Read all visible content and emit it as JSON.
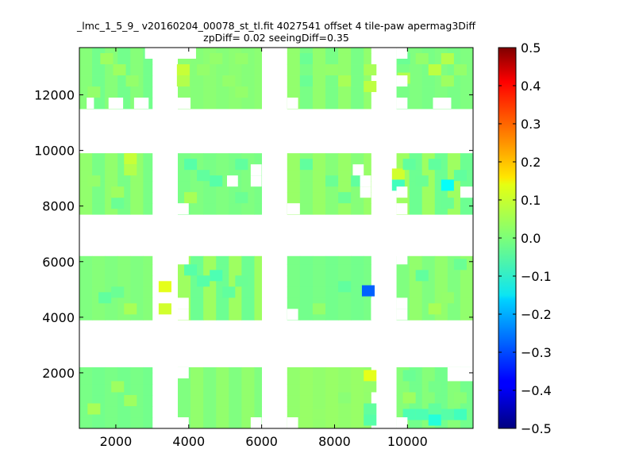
{
  "chart_data": {
    "type": "heatmap",
    "title": "_lmc_1_5_9_ v20160204_00078_st_tl.fit 4027541 offset 4 tile-paw apermag3Diff",
    "subtitle": "zpDiff= 0.02 seeingDiff=0.35",
    "xlabel": "",
    "ylabel": "",
    "xlim": [
      1000,
      11800
    ],
    "ylim": [
      0,
      13700
    ],
    "x_ticks": [
      2000,
      4000,
      6000,
      8000,
      10000
    ],
    "y_ticks": [
      2000,
      4000,
      6000,
      8000,
      10000,
      12000
    ],
    "colorbar": {
      "colormap": "jet",
      "vmin": -0.5,
      "vmax": 0.5,
      "ticks": [
        0.5,
        0.4,
        0.3,
        0.2,
        0.1,
        0.0,
        -0.1,
        -0.2,
        -0.3,
        -0.4,
        -0.5
      ],
      "tick_labels": [
        "0.5",
        "0.4",
        "0.3",
        "0.2",
        "0.1",
        "0.0",
        "−0.1",
        "−0.2",
        "−0.3",
        "−0.4",
        "−0.5"
      ]
    },
    "grid": false,
    "cell_size": [
      350,
      400
    ],
    "detector_columns": [
      [
        1000,
        3000
      ],
      [
        3700,
        6000
      ],
      [
        6700,
        9000
      ],
      [
        9700,
        11800
      ]
    ],
    "detector_rows": [
      [
        0,
        2200
      ],
      [
        3900,
        6200
      ],
      [
        7700,
        9900
      ],
      [
        11500,
        13700
      ]
    ],
    "baseline_value": 0.0,
    "cells": [
      {
        "x": 2050,
        "y": 1500,
        "v": 0.03
      },
      {
        "x": 1400,
        "y": 700,
        "v": 0.04
      },
      {
        "x": 2400,
        "y": 1000,
        "v": 0.03
      },
      {
        "x": 8975,
        "y": 1900,
        "v": 0.1
      },
      {
        "x": 8975,
        "y": 1500,
        "v": 0.02
      },
      {
        "x": 8975,
        "y": 700,
        "v": -0.03
      },
      {
        "x": 8975,
        "y": 300,
        "v": -0.04
      },
      {
        "x": 8275,
        "y": 1100,
        "v": 0.01
      },
      {
        "x": 7575,
        "y": 500,
        "v": 0.02
      },
      {
        "x": 10050,
        "y": 1900,
        "v": -0.02
      },
      {
        "x": 10050,
        "y": 1100,
        "v": 0.03
      },
      {
        "x": 10050,
        "y": 500,
        "v": -0.05
      },
      {
        "x": 10400,
        "y": 500,
        "v": -0.05
      },
      {
        "x": 10750,
        "y": 300,
        "v": -0.09
      },
      {
        "x": 10750,
        "y": 700,
        "v": -0.03
      },
      {
        "x": 11100,
        "y": 500,
        "v": -0.04
      },
      {
        "x": 11450,
        "y": 500,
        "v": -0.06
      },
      {
        "x": 11450,
        "y": 1100,
        "v": 0.01
      },
      {
        "x": 10750,
        "y": 1500,
        "v": -0.01
      },
      {
        "x": 3350,
        "y": 5100,
        "v": 0.1
      },
      {
        "x": 3350,
        "y": 4300,
        "v": 0.08
      },
      {
        "x": 4050,
        "y": 5700,
        "v": -0.04
      },
      {
        "x": 4400,
        "y": 5300,
        "v": -0.04
      },
      {
        "x": 4750,
        "y": 5500,
        "v": -0.05
      },
      {
        "x": 5100,
        "y": 4900,
        "v": -0.03
      },
      {
        "x": 5450,
        "y": 5300,
        "v": -0.02
      },
      {
        "x": 2050,
        "y": 4900,
        "v": -0.02
      },
      {
        "x": 1700,
        "y": 4700,
        "v": -0.03
      },
      {
        "x": 2400,
        "y": 4300,
        "v": 0.04
      },
      {
        "x": 8925,
        "y": 4950,
        "v": -0.28
      },
      {
        "x": 8275,
        "y": 5100,
        "v": -0.03
      },
      {
        "x": 7575,
        "y": 4300,
        "v": 0.02
      },
      {
        "x": 10400,
        "y": 5500,
        "v": -0.03
      },
      {
        "x": 10750,
        "y": 4300,
        "v": 0.04
      },
      {
        "x": 11100,
        "y": 4700,
        "v": 0.02
      },
      {
        "x": 11450,
        "y": 5900,
        "v": -0.02
      },
      {
        "x": 2400,
        "y": 9700,
        "v": 0.07
      },
      {
        "x": 2400,
        "y": 9300,
        "v": 0.05
      },
      {
        "x": 2050,
        "y": 8100,
        "v": -0.02
      },
      {
        "x": 2050,
        "y": 8500,
        "v": 0.03
      },
      {
        "x": 1400,
        "y": 8900,
        "v": 0.02
      },
      {
        "x": 4050,
        "y": 9500,
        "v": -0.04
      },
      {
        "x": 4400,
        "y": 9100,
        "v": -0.03
      },
      {
        "x": 4750,
        "y": 8900,
        "v": -0.04
      },
      {
        "x": 4050,
        "y": 8300,
        "v": 0.04
      },
      {
        "x": 5450,
        "y": 8300,
        "v": -0.02
      },
      {
        "x": 5450,
        "y": 9500,
        "v": -0.03
      },
      {
        "x": 7225,
        "y": 9500,
        "v": -0.03
      },
      {
        "x": 7925,
        "y": 8900,
        "v": -0.02
      },
      {
        "x": 8625,
        "y": 8900,
        "v": -0.03
      },
      {
        "x": 8275,
        "y": 8300,
        "v": -0.02
      },
      {
        "x": 9750,
        "y": 9150,
        "v": 0.08
      },
      {
        "x": 9750,
        "y": 8750,
        "v": -0.06
      },
      {
        "x": 10050,
        "y": 9500,
        "v": -0.03
      },
      {
        "x": 10400,
        "y": 8900,
        "v": -0.02
      },
      {
        "x": 10750,
        "y": 9500,
        "v": -0.03
      },
      {
        "x": 11100,
        "y": 8750,
        "v": -0.12
      },
      {
        "x": 11450,
        "y": 9100,
        "v": -0.03
      },
      {
        "x": 11100,
        "y": 8100,
        "v": -0.02
      },
      {
        "x": 1750,
        "y": 13300,
        "v": 0.03
      },
      {
        "x": 2100,
        "y": 12900,
        "v": 0.03
      },
      {
        "x": 2450,
        "y": 12500,
        "v": 0.02
      },
      {
        "x": 1400,
        "y": 12100,
        "v": 0.02
      },
      {
        "x": 3850,
        "y": 12900,
        "v": 0.07
      },
      {
        "x": 3850,
        "y": 12500,
        "v": 0.05
      },
      {
        "x": 4400,
        "y": 12900,
        "v": 0.02
      },
      {
        "x": 4750,
        "y": 13300,
        "v": 0.02
      },
      {
        "x": 5100,
        "y": 12500,
        "v": 0.02
      },
      {
        "x": 5450,
        "y": 13300,
        "v": 0.02
      },
      {
        "x": 5450,
        "y": 12100,
        "v": 0.02
      },
      {
        "x": 7225,
        "y": 13300,
        "v": -0.02
      },
      {
        "x": 7225,
        "y": 12500,
        "v": -0.02
      },
      {
        "x": 7925,
        "y": 12900,
        "v": 0.02
      },
      {
        "x": 8275,
        "y": 12500,
        "v": 0.04
      },
      {
        "x": 8975,
        "y": 12900,
        "v": 0.04
      },
      {
        "x": 8975,
        "y": 12300,
        "v": 0.06
      },
      {
        "x": 9900,
        "y": 13300,
        "v": -0.02
      },
      {
        "x": 9900,
        "y": 12600,
        "v": 0.05
      },
      {
        "x": 10400,
        "y": 13300,
        "v": 0.02
      },
      {
        "x": 10750,
        "y": 12900,
        "v": 0.06
      },
      {
        "x": 11100,
        "y": 13300,
        "v": 0.05
      },
      {
        "x": 11100,
        "y": 12500,
        "v": 0.03
      },
      {
        "x": 11450,
        "y": 12900,
        "v": 0.02
      }
    ],
    "blank_cells": [
      {
        "x": 1200,
        "y": 11500,
        "w": 200,
        "h": 400
      },
      {
        "x": 1800,
        "y": 11500,
        "w": 400,
        "h": 400
      },
      {
        "x": 2500,
        "y": 11500,
        "w": 400,
        "h": 400
      },
      {
        "x": 2800,
        "y": 13300,
        "w": 500,
        "h": 400
      },
      {
        "x": 3700,
        "y": 13300,
        "w": 500,
        "h": 400
      },
      {
        "x": 3700,
        "y": 11500,
        "w": 350,
        "h": 400
      },
      {
        "x": 6700,
        "y": 11500,
        "w": 300,
        "h": 400
      },
      {
        "x": 9700,
        "y": 11500,
        "w": 300,
        "h": 400
      },
      {
        "x": 10700,
        "y": 11500,
        "w": 500,
        "h": 400
      },
      {
        "x": 9700,
        "y": 13300,
        "w": 300,
        "h": 400
      },
      {
        "x": 9700,
        "y": 12300,
        "w": 300,
        "h": 400
      },
      {
        "x": 5700,
        "y": 9100,
        "w": 300,
        "h": 400
      },
      {
        "x": 5700,
        "y": 8700,
        "w": 300,
        "h": 400
      },
      {
        "x": 5050,
        "y": 8700,
        "w": 300,
        "h": 400
      },
      {
        "x": 8500,
        "y": 9100,
        "w": 300,
        "h": 400
      },
      {
        "x": 8700,
        "y": 8700,
        "w": 300,
        "h": 400
      },
      {
        "x": 8700,
        "y": 8300,
        "w": 300,
        "h": 400
      },
      {
        "x": 6700,
        "y": 7700,
        "w": 350,
        "h": 400
      },
      {
        "x": 9700,
        "y": 8300,
        "w": 300,
        "h": 400
      },
      {
        "x": 9700,
        "y": 7700,
        "w": 300,
        "h": 400
      },
      {
        "x": 11450,
        "y": 8300,
        "w": 350,
        "h": 400
      },
      {
        "x": 3700,
        "y": 7700,
        "w": 300,
        "h": 400
      },
      {
        "x": 6700,
        "y": 3900,
        "w": 300,
        "h": 400
      },
      {
        "x": 9700,
        "y": 3900,
        "w": 300,
        "h": 400
      },
      {
        "x": 9700,
        "y": 4300,
        "w": 300,
        "h": 400
      },
      {
        "x": 9700,
        "y": 5900,
        "w": 300,
        "h": 400
      },
      {
        "x": 9000,
        "y": 4300,
        "w": 300,
        "h": 400
      },
      {
        "x": 9000,
        "y": 3900,
        "w": 300,
        "h": 400
      },
      {
        "x": 3700,
        "y": 3900,
        "w": 300,
        "h": 400
      },
      {
        "x": 3700,
        "y": 4300,
        "w": 300,
        "h": 400
      },
      {
        "x": 3700,
        "y": 5900,
        "w": 300,
        "h": 400
      },
      {
        "x": 3700,
        "y": 0,
        "w": 300,
        "h": 400
      },
      {
        "x": 5700,
        "y": 0,
        "w": 300,
        "h": 400
      },
      {
        "x": 6700,
        "y": 0,
        "w": 300,
        "h": 400
      },
      {
        "x": 9700,
        "y": 0,
        "w": 300,
        "h": 400
      },
      {
        "x": 11100,
        "y": 1700,
        "w": 700,
        "h": 500
      },
      {
        "x": 3700,
        "y": 1800,
        "w": 300,
        "h": 400
      }
    ]
  }
}
